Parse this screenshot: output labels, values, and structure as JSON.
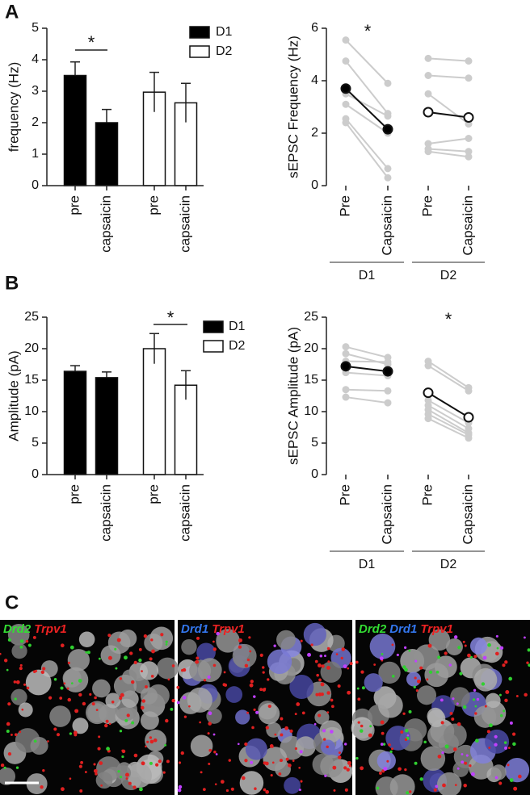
{
  "panel_labels": [
    "A",
    "B",
    "C"
  ],
  "chart_data": [
    {
      "type": "bar",
      "ylabel": "frequency (Hz)",
      "ylim": [
        0,
        5
      ],
      "yticks": [
        0,
        1,
        2,
        3,
        4,
        5
      ],
      "categories": [
        "pre",
        "capsaicin",
        "pre",
        "capsaicin"
      ],
      "series": [
        {
          "name": "D1",
          "color": "#000000",
          "values": [
            3.5,
            2.0,
            null,
            null
          ],
          "errors": [
            0.43,
            0.42,
            null,
            null
          ]
        },
        {
          "name": "D2",
          "color": "#ffffff",
          "values": [
            null,
            null,
            2.97,
            2.63
          ],
          "errors": [
            null,
            null,
            0.63,
            0.62
          ]
        }
      ],
      "annotations": [
        "*"
      ]
    },
    {
      "type": "paired",
      "ylabel": "sEPSC Frequency (Hz)",
      "ylim": [
        0,
        6
      ],
      "yticks": [
        0,
        2,
        4,
        6
      ],
      "categories": [
        "Pre",
        "Capsaicin",
        "Pre",
        "Capsaicin"
      ],
      "line_color": "#cccccc",
      "groups": [
        {
          "name": "D1",
          "mean_fill": "#000000",
          "mean": [
            3.7,
            2.15
          ],
          "cells": [
            [
              5.55,
              3.9
            ],
            [
              4.75,
              2.75
            ],
            [
              3.5,
              2.65
            ],
            [
              3.1,
              2.0
            ],
            [
              2.55,
              0.65
            ],
            [
              2.4,
              0.3
            ]
          ]
        },
        {
          "name": "D2",
          "mean_fill": "#ffffff",
          "mean": [
            2.8,
            2.6
          ],
          "cells": [
            [
              4.85,
              4.75
            ],
            [
              4.2,
              4.1
            ],
            [
              3.5,
              2.35
            ],
            [
              1.6,
              1.8
            ],
            [
              1.4,
              1.3
            ],
            [
              1.3,
              1.1
            ]
          ]
        }
      ],
      "annotations": [
        "*"
      ]
    },
    {
      "type": "bar",
      "ylabel": "Amplitude (pA)",
      "ylim": [
        0,
        25
      ],
      "yticks": [
        0,
        5,
        10,
        15,
        20,
        25
      ],
      "categories": [
        "pre",
        "capsaicin",
        "pre",
        "capsaicin"
      ],
      "series": [
        {
          "name": "D1",
          "color": "#000000",
          "values": [
            16.4,
            15.4,
            null,
            null
          ],
          "errors": [
            0.9,
            0.9,
            null,
            null
          ]
        },
        {
          "name": "D2",
          "color": "#ffffff",
          "values": [
            null,
            null,
            20.0,
            14.2
          ],
          "errors": [
            null,
            null,
            2.4,
            2.3
          ]
        }
      ],
      "annotations": [
        "*"
      ]
    },
    {
      "type": "paired",
      "ylabel": "sEPSC Amplitude (pA)",
      "ylim": [
        0,
        25
      ],
      "yticks": [
        0,
        5,
        10,
        15,
        20,
        25
      ],
      "categories": [
        "Pre",
        "Capsaicin",
        "Pre",
        "Capsaicin"
      ],
      "line_color": "#cccccc",
      "groups": [
        {
          "name": "D1",
          "mean_fill": "#000000",
          "mean": [
            17.2,
            16.4
          ],
          "cells": [
            [
              20.3,
              18.6
            ],
            [
              19.2,
              17.5
            ],
            [
              18.0,
              17.9
            ],
            [
              16.2,
              15.7
            ],
            [
              13.5,
              13.3
            ],
            [
              12.3,
              11.4
            ]
          ]
        },
        {
          "name": "D2",
          "mean_fill": "#ffffff",
          "mean": [
            13.0,
            9.1
          ],
          "cells": [
            [
              18.0,
              13.8
            ],
            [
              17.3,
              13.3
            ],
            [
              11.8,
              8.2
            ],
            [
              11.0,
              7.3
            ],
            [
              10.3,
              6.6
            ],
            [
              9.6,
              6.3
            ],
            [
              8.9,
              5.8
            ]
          ]
        }
      ],
      "annotations": [
        "*"
      ]
    }
  ],
  "micrographs": [
    {
      "labels": [
        {
          "text": "Drd2",
          "color": "#33dd33"
        },
        {
          "text": "Trpv1",
          "color": "#ee2222"
        }
      ]
    },
    {
      "labels": [
        {
          "text": "Drd1",
          "color": "#3377ee"
        },
        {
          "text": "Trpv1",
          "color": "#ee2222"
        }
      ]
    },
    {
      "labels": [
        {
          "text": "Drd2",
          "color": "#33dd33"
        },
        {
          "text": "Drd1",
          "color": "#3377ee"
        },
        {
          "text": "Trpv1",
          "color": "#ee2222"
        }
      ]
    }
  ]
}
